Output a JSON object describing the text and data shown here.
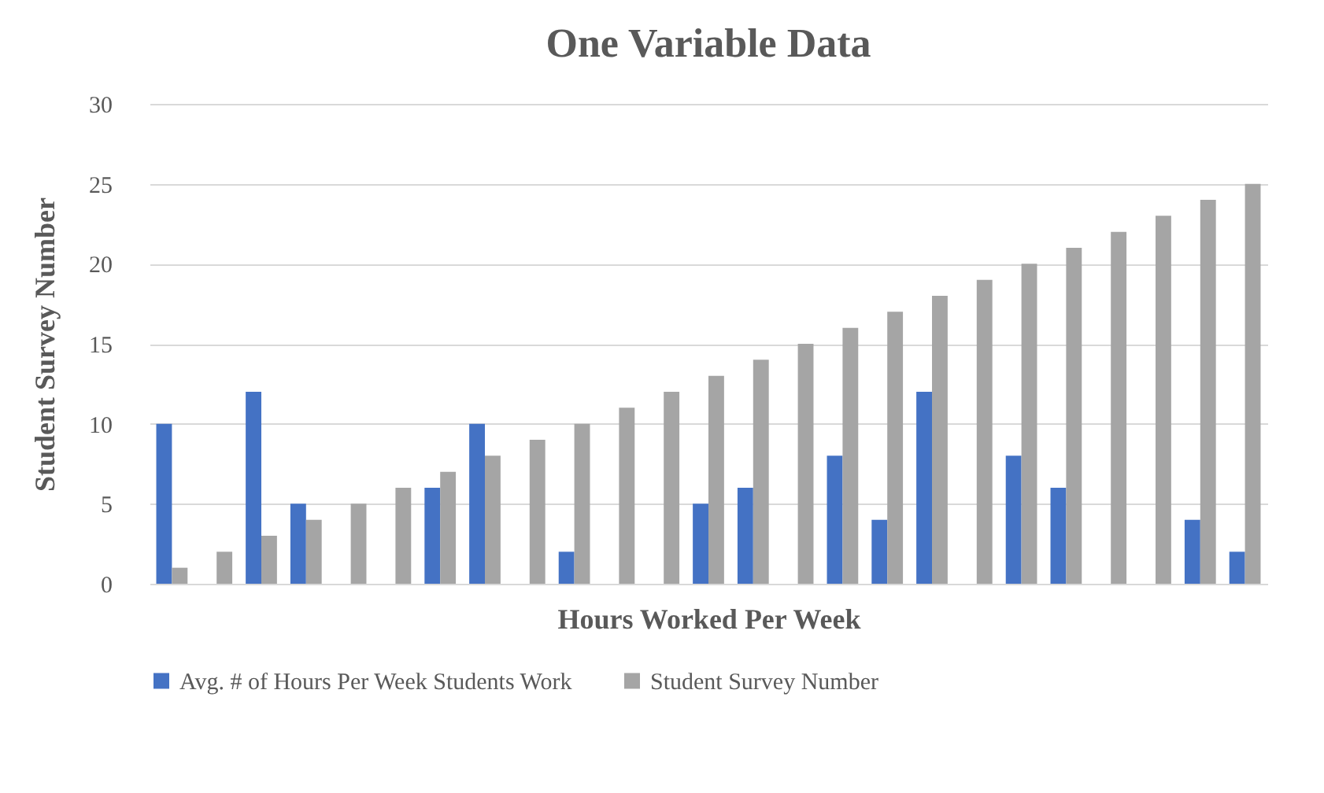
{
  "chart_data": {
    "type": "bar",
    "title": "One Variable Data",
    "xlabel": "Hours Worked Per Week",
    "ylabel": "Student Survey Number",
    "categories": [
      null,
      null,
      null,
      null,
      null,
      null,
      null,
      null,
      null,
      null,
      null,
      null,
      null,
      null,
      null,
      null,
      null,
      null,
      null,
      null,
      null,
      null,
      null,
      null,
      null
    ],
    "series": [
      {
        "name": "Avg. # of Hours Per Week Students Work",
        "color": "#4472c4",
        "values": [
          10,
          null,
          12,
          5,
          null,
          null,
          6,
          10,
          null,
          2,
          null,
          null,
          5,
          6,
          null,
          8,
          4,
          12,
          null,
          8,
          6,
          null,
          null,
          4,
          2
        ]
      },
      {
        "name": "Student Survey Number",
        "color": "#a5a5a5",
        "values": [
          1,
          2,
          3,
          4,
          5,
          6,
          7,
          8,
          9,
          10,
          11,
          12,
          13,
          14,
          15,
          16,
          17,
          18,
          19,
          20,
          21,
          22,
          23,
          24,
          25
        ]
      }
    ],
    "ylim": [
      0,
      30
    ],
    "yticks": [
      0,
      5,
      10,
      15,
      20,
      25,
      30
    ],
    "grid": "y",
    "legend": "bottom",
    "tick_labels": "y"
  }
}
